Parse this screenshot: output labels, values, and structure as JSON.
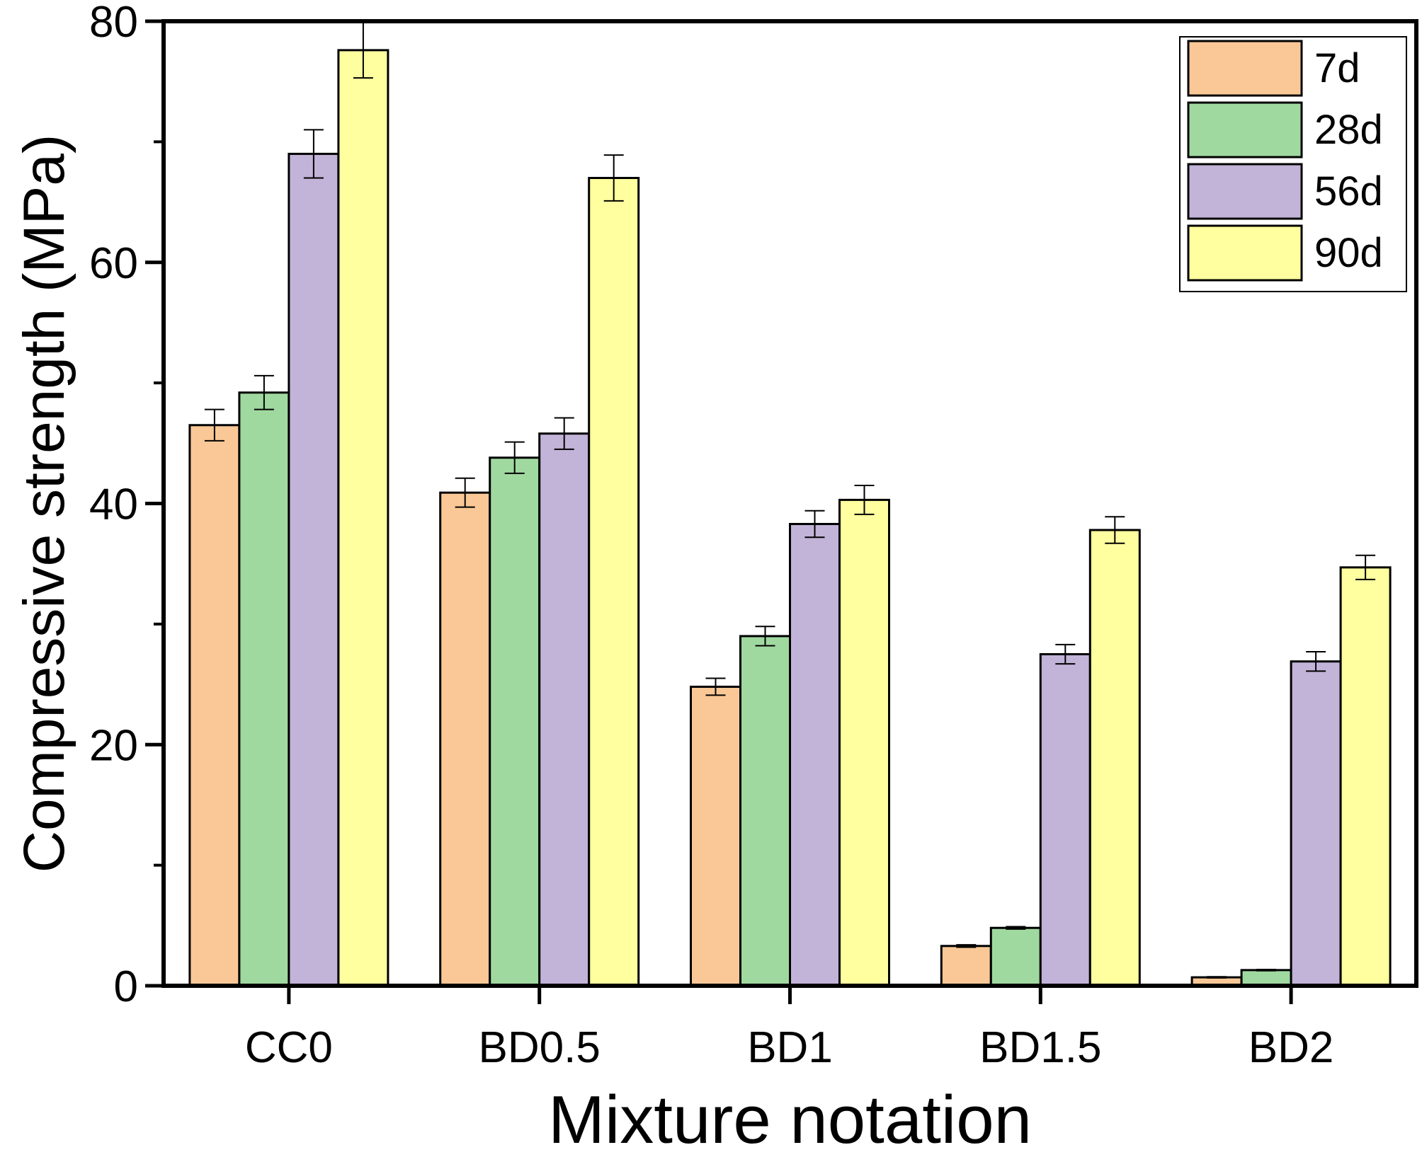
{
  "chart_data": {
    "type": "bar",
    "title": "",
    "xlabel": "Mixture notation",
    "ylabel": "Compressive strength (MPa)",
    "ylim": [
      0,
      80
    ],
    "yticks": [
      0,
      20,
      40,
      60,
      80
    ],
    "grid": false,
    "legend_position": "top-right",
    "categories": [
      "CC0",
      "BD0.5",
      "BD1",
      "BD1.5",
      "BD2"
    ],
    "series": [
      {
        "name": "7d",
        "color": "#F9C896",
        "values": [
          46.5,
          40.9,
          24.8,
          3.3,
          0.7
        ],
        "errors": [
          1.3,
          1.2,
          0.7,
          0.1,
          0.05
        ]
      },
      {
        "name": "28d",
        "color": "#A0D9A0",
        "values": [
          49.2,
          43.8,
          29.0,
          4.8,
          1.3
        ],
        "errors": [
          1.4,
          1.3,
          0.8,
          0.1,
          0.05
        ]
      },
      {
        "name": "56d",
        "color": "#C2B3D8",
        "values": [
          69.0,
          45.8,
          38.3,
          27.5,
          26.9
        ],
        "errors": [
          2.0,
          1.3,
          1.1,
          0.8,
          0.8
        ]
      },
      {
        "name": "90d",
        "color": "#FFFFA0",
        "values": [
          77.6,
          67.0,
          40.3,
          37.8,
          34.7
        ],
        "errors": [
          2.3,
          1.9,
          1.2,
          1.1,
          1.0
        ]
      }
    ]
  }
}
